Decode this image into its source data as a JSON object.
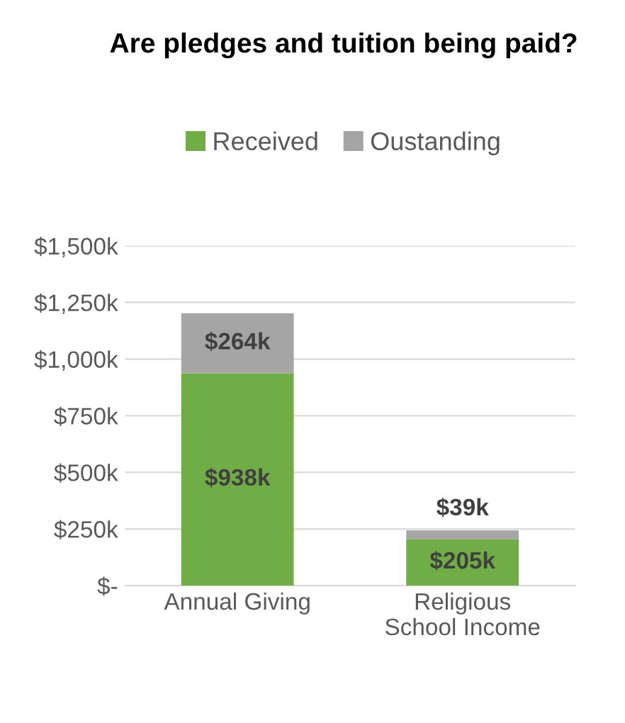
{
  "chart_data": {
    "type": "bar",
    "title": "Are pledges and tuition being paid?",
    "stacked": true,
    "categories": [
      "Annual Giving",
      "Religious\nSchool Income"
    ],
    "series": [
      {
        "name": "Received",
        "color": "#70ad47",
        "values": [
          938,
          205
        ],
        "value_labels": [
          "$938k",
          "$205k"
        ]
      },
      {
        "name": "Oustanding",
        "color": "#a5a5a5",
        "values": [
          264,
          39
        ],
        "value_labels": [
          "$264k",
          "$39k"
        ]
      }
    ],
    "ylim": [
      0,
      1500
    ],
    "yticks": [
      {
        "value": 0,
        "label": "$-"
      },
      {
        "value": 250,
        "label": "$250k"
      },
      {
        "value": 500,
        "label": "$500k"
      },
      {
        "value": 750,
        "label": "$750k"
      },
      {
        "value": 1000,
        "label": "$1,000k"
      },
      {
        "value": 1250,
        "label": "$1,250k"
      },
      {
        "value": 1500,
        "label": "$1,500k"
      }
    ],
    "grid": "y",
    "legend": "top"
  }
}
